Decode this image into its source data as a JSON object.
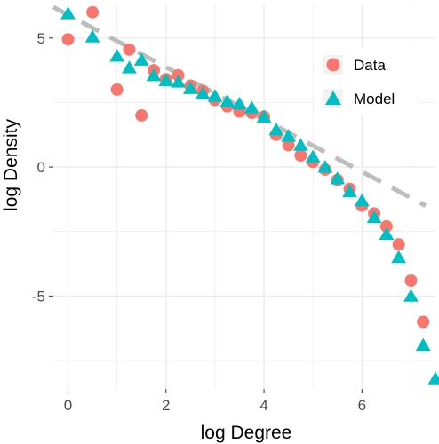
{
  "chart_data": {
    "type": "scatter",
    "xlabel": "log Degree",
    "ylabel": "log Density",
    "xlim": [
      -0.3,
      7.5
    ],
    "ylim": [
      -8.6,
      6.3
    ],
    "x_ticks": [
      0,
      2,
      4,
      6
    ],
    "y_ticks": [
      -5,
      0,
      5
    ],
    "grid": true,
    "legend_position": "top-right",
    "colors": {
      "Data": "#f8766d",
      "Model": "#00bfc4",
      "fit_line": "#bdbdbd",
      "panel_background": "#ffffff",
      "grid": "#ebebeb"
    },
    "series": [
      {
        "name": "Data",
        "marker": "circle",
        "points": [
          [
            0,
            4.95
          ],
          [
            0.5,
            6.0
          ],
          [
            1.0,
            3.0
          ],
          [
            1.25,
            4.55
          ],
          [
            1.5,
            2.0
          ],
          [
            1.75,
            3.75
          ],
          [
            2.0,
            3.4
          ],
          [
            2.25,
            3.55
          ],
          [
            2.5,
            3.15
          ],
          [
            2.75,
            2.95
          ],
          [
            3.0,
            2.6
          ],
          [
            3.25,
            2.35
          ],
          [
            3.5,
            2.15
          ],
          [
            3.75,
            2.1
          ],
          [
            4.0,
            1.95
          ],
          [
            4.25,
            1.25
          ],
          [
            4.5,
            0.85
          ],
          [
            4.75,
            0.45
          ],
          [
            5.0,
            0.2
          ],
          [
            5.25,
            -0.1
          ],
          [
            5.5,
            -0.5
          ],
          [
            5.75,
            -0.85
          ],
          [
            6.0,
            -1.5
          ],
          [
            6.25,
            -1.8
          ],
          [
            6.5,
            -2.3
          ],
          [
            6.75,
            -3.0
          ],
          [
            7.0,
            -4.4
          ],
          [
            7.25,
            -6.0
          ]
        ]
      },
      {
        "name": "Model",
        "marker": "triangle",
        "points": [
          [
            0,
            5.95
          ],
          [
            0.5,
            5.05
          ],
          [
            1.0,
            4.3
          ],
          [
            1.25,
            3.85
          ],
          [
            1.5,
            4.15
          ],
          [
            1.75,
            3.55
          ],
          [
            2.0,
            3.35
          ],
          [
            2.25,
            3.3
          ],
          [
            2.5,
            3.05
          ],
          [
            2.75,
            2.85
          ],
          [
            3.0,
            2.75
          ],
          [
            3.25,
            2.55
          ],
          [
            3.5,
            2.45
          ],
          [
            3.75,
            2.3
          ],
          [
            4.0,
            1.95
          ],
          [
            4.25,
            1.45
          ],
          [
            4.5,
            1.2
          ],
          [
            4.75,
            0.85
          ],
          [
            5.0,
            0.4
          ],
          [
            5.25,
            0.0
          ],
          [
            5.5,
            -0.45
          ],
          [
            5.75,
            -0.95
          ],
          [
            6.0,
            -1.3
          ],
          [
            6.25,
            -1.95
          ],
          [
            6.5,
            -2.6
          ],
          [
            6.75,
            -3.5
          ],
          [
            7.0,
            -5.0
          ],
          [
            7.25,
            -6.9
          ],
          [
            7.5,
            -8.2
          ]
        ]
      }
    ],
    "fit_line": {
      "style": "dashed",
      "from": [
        -0.3,
        6.2
      ],
      "to": [
        7.3,
        -1.5
      ]
    }
  }
}
